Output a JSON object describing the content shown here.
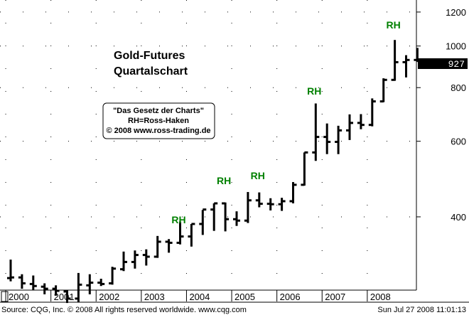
{
  "chart_data": {
    "type": "ohlc",
    "title": "Gold-Futures",
    "subtitle": "Quartalschart",
    "y_scale": "log",
    "ylim": [
      270,
      1280
    ],
    "y_ticks": [
      "400",
      "600",
      "800",
      "1000",
      "1200"
    ],
    "x_labels": [
      "2000",
      "2001",
      "2002",
      "2003",
      "2004",
      "2005",
      "2006",
      "2007",
      "2008"
    ],
    "grid": true,
    "last_value": "927",
    "info_box": [
      "\"Das Gesetz der Charts\"",
      "RH=Ross-Haken",
      "© 2008 www.ross-trading.de"
    ],
    "rh_label": "RH",
    "rh_markers": [
      {
        "quarter_index": 15,
        "price": 375
      },
      {
        "quarter_index": 19,
        "price": 462
      },
      {
        "quarter_index": 22,
        "price": 475
      },
      {
        "quarter_index": 27,
        "price": 748
      },
      {
        "quarter_index": 34,
        "price": 1065
      }
    ],
    "bars": [
      {
        "o": 288,
        "h": 318,
        "l": 283,
        "c": 289
      },
      {
        "o": 289,
        "h": 294,
        "l": 272,
        "c": 280
      },
      {
        "o": 279,
        "h": 292,
        "l": 270,
        "c": 276
      },
      {
        "o": 275,
        "h": 280,
        "l": 264,
        "c": 272
      },
      {
        "o": 272,
        "h": 277,
        "l": 262,
        "c": 269
      },
      {
        "o": 268,
        "h": 270,
        "l": 252,
        "c": 258
      },
      {
        "o": 258,
        "h": 296,
        "l": 253,
        "c": 278
      },
      {
        "o": 277,
        "h": 294,
        "l": 264,
        "c": 281
      },
      {
        "o": 281,
        "h": 287,
        "l": 276,
        "c": 279
      },
      {
        "o": 280,
        "h": 306,
        "l": 278,
        "c": 303
      },
      {
        "o": 302,
        "h": 332,
        "l": 299,
        "c": 314
      },
      {
        "o": 314,
        "h": 334,
        "l": 303,
        "c": 326
      },
      {
        "o": 326,
        "h": 336,
        "l": 308,
        "c": 323
      },
      {
        "o": 323,
        "h": 361,
        "l": 321,
        "c": 350
      },
      {
        "o": 350,
        "h": 355,
        "l": 330,
        "c": 348
      },
      {
        "o": 348,
        "h": 390,
        "l": 345,
        "c": 360
      },
      {
        "o": 360,
        "h": 385,
        "l": 341,
        "c": 385
      },
      {
        "o": 385,
        "h": 415,
        "l": 363,
        "c": 416
      },
      {
        "o": 416,
        "h": 430,
        "l": 371,
        "c": 430
      },
      {
        "o": 430,
        "h": 432,
        "l": 370,
        "c": 395
      },
      {
        "o": 395,
        "h": 412,
        "l": 381,
        "c": 392
      },
      {
        "o": 392,
        "h": 457,
        "l": 387,
        "c": 437
      },
      {
        "o": 437,
        "h": 456,
        "l": 421,
        "c": 429
      },
      {
        "o": 429,
        "h": 442,
        "l": 414,
        "c": 428
      },
      {
        "o": 428,
        "h": 443,
        "l": 413,
        "c": 435
      },
      {
        "o": 435,
        "h": 482,
        "l": 430,
        "c": 475
      },
      {
        "o": 475,
        "h": 565,
        "l": 473,
        "c": 565
      },
      {
        "o": 565,
        "h": 735,
        "l": 540,
        "c": 614
      },
      {
        "o": 614,
        "h": 660,
        "l": 560,
        "c": 598
      },
      {
        "o": 598,
        "h": 652,
        "l": 560,
        "c": 636
      },
      {
        "o": 636,
        "h": 693,
        "l": 604,
        "c": 662
      },
      {
        "o": 662,
        "h": 694,
        "l": 640,
        "c": 655
      },
      {
        "o": 655,
        "h": 755,
        "l": 650,
        "c": 743
      },
      {
        "o": 743,
        "h": 841,
        "l": 740,
        "c": 834
      },
      {
        "o": 834,
        "h": 1033,
        "l": 830,
        "c": 917
      },
      {
        "o": 917,
        "h": 952,
        "l": 845,
        "c": 928
      },
      {
        "o": 928,
        "h": 990,
        "l": 918,
        "c": 927
      }
    ]
  },
  "footer": {
    "source": "Source: CQG, Inc. © 2008 All rights reserved worldwide. www.cqg.com",
    "timestamp": "Sun Jul 27 2008 11:01:13"
  }
}
